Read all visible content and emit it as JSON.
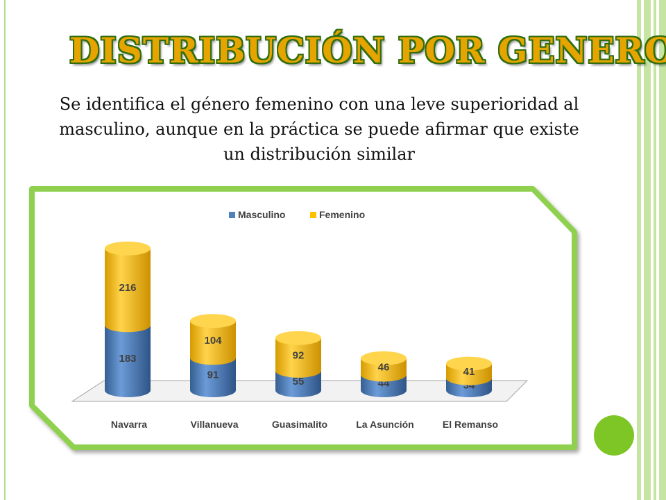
{
  "title": "DISTRIBUCIÓN POR GENERO",
  "subtitle": "Se identifica el género femenino con una leve superioridad al masculino, aunque en la práctica se puede afirmar que existe un distribución similar",
  "colors": {
    "accent_green": "#7dc626",
    "title_fill": "#e6a400",
    "title_outline": "#2f6e10",
    "masculino": "#4f81bd",
    "femenino": "#ffc000"
  },
  "chart_data": {
    "type": "bar",
    "stacked": true,
    "style": "3d-cylinder",
    "title": "",
    "xlabel": "",
    "ylabel": "",
    "ylim": [
      0,
      400
    ],
    "grid": false,
    "legend": "top",
    "categories": [
      "Navarra",
      "Villanueva",
      "Guasimalito",
      "La Asunción",
      "El Remanso"
    ],
    "series": [
      {
        "name": "Masculino",
        "color": "#4f81bd",
        "values": [
          183,
          91,
          55,
          44,
          34
        ]
      },
      {
        "name": "Femenino",
        "color": "#ffc000",
        "values": [
          216,
          104,
          92,
          46,
          41
        ]
      }
    ]
  }
}
